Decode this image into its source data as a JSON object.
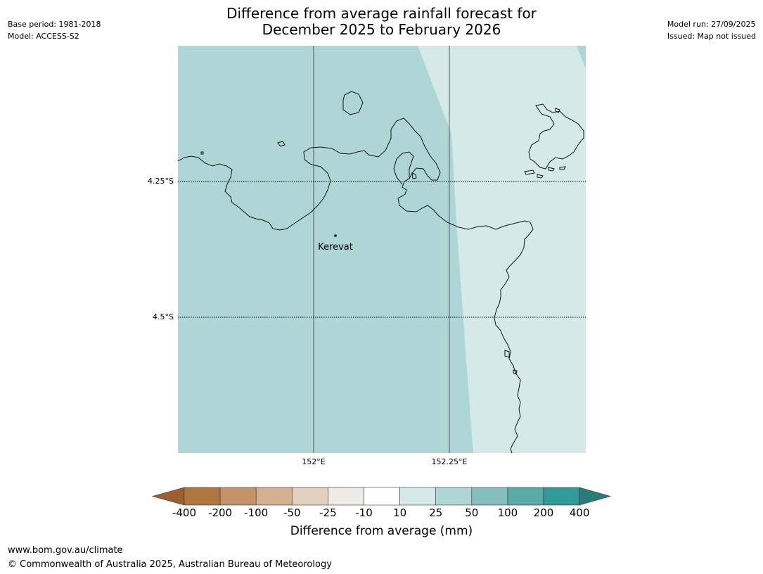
{
  "header": {
    "base_period": "Base period: 1981-2018",
    "model": "Model: ACCESS-S2",
    "model_run": "Model run: 27/09/2025",
    "issued": "Issued: Map not issued",
    "title_line1": "Difference from average rainfall forecast for",
    "title_line2": "December 2025 to February 2026"
  },
  "map": {
    "latitude_labels": [
      "4.25°S",
      "4.5°S"
    ],
    "longitude_labels": [
      "152°E",
      "152.25°E"
    ],
    "place_label": "Kerevat",
    "category_colors": {
      "10_to_25": "#d4e9e8",
      "25_to_50": "#aed6d6"
    }
  },
  "colorbar": {
    "title": "Difference from average (mm)",
    "ticks": [
      "-400",
      "-200",
      "-100",
      "-50",
      "-25",
      "-10",
      "10",
      "25",
      "50",
      "100",
      "200",
      "400"
    ],
    "colors": [
      "#9c6030",
      "#b07840",
      "#c49468",
      "#d4b090",
      "#e4d0be",
      "#efebe7",
      "#ffffff",
      "#d4e9e8",
      "#aed6d6",
      "#85c0be",
      "#5aaaa9",
      "#319a98",
      "#297c7a"
    ]
  },
  "footer": {
    "url": "www.bom.gov.au/climate",
    "copyright": "© Commonwealth of Australia 2025, Australian Bureau of Meteorology"
  }
}
